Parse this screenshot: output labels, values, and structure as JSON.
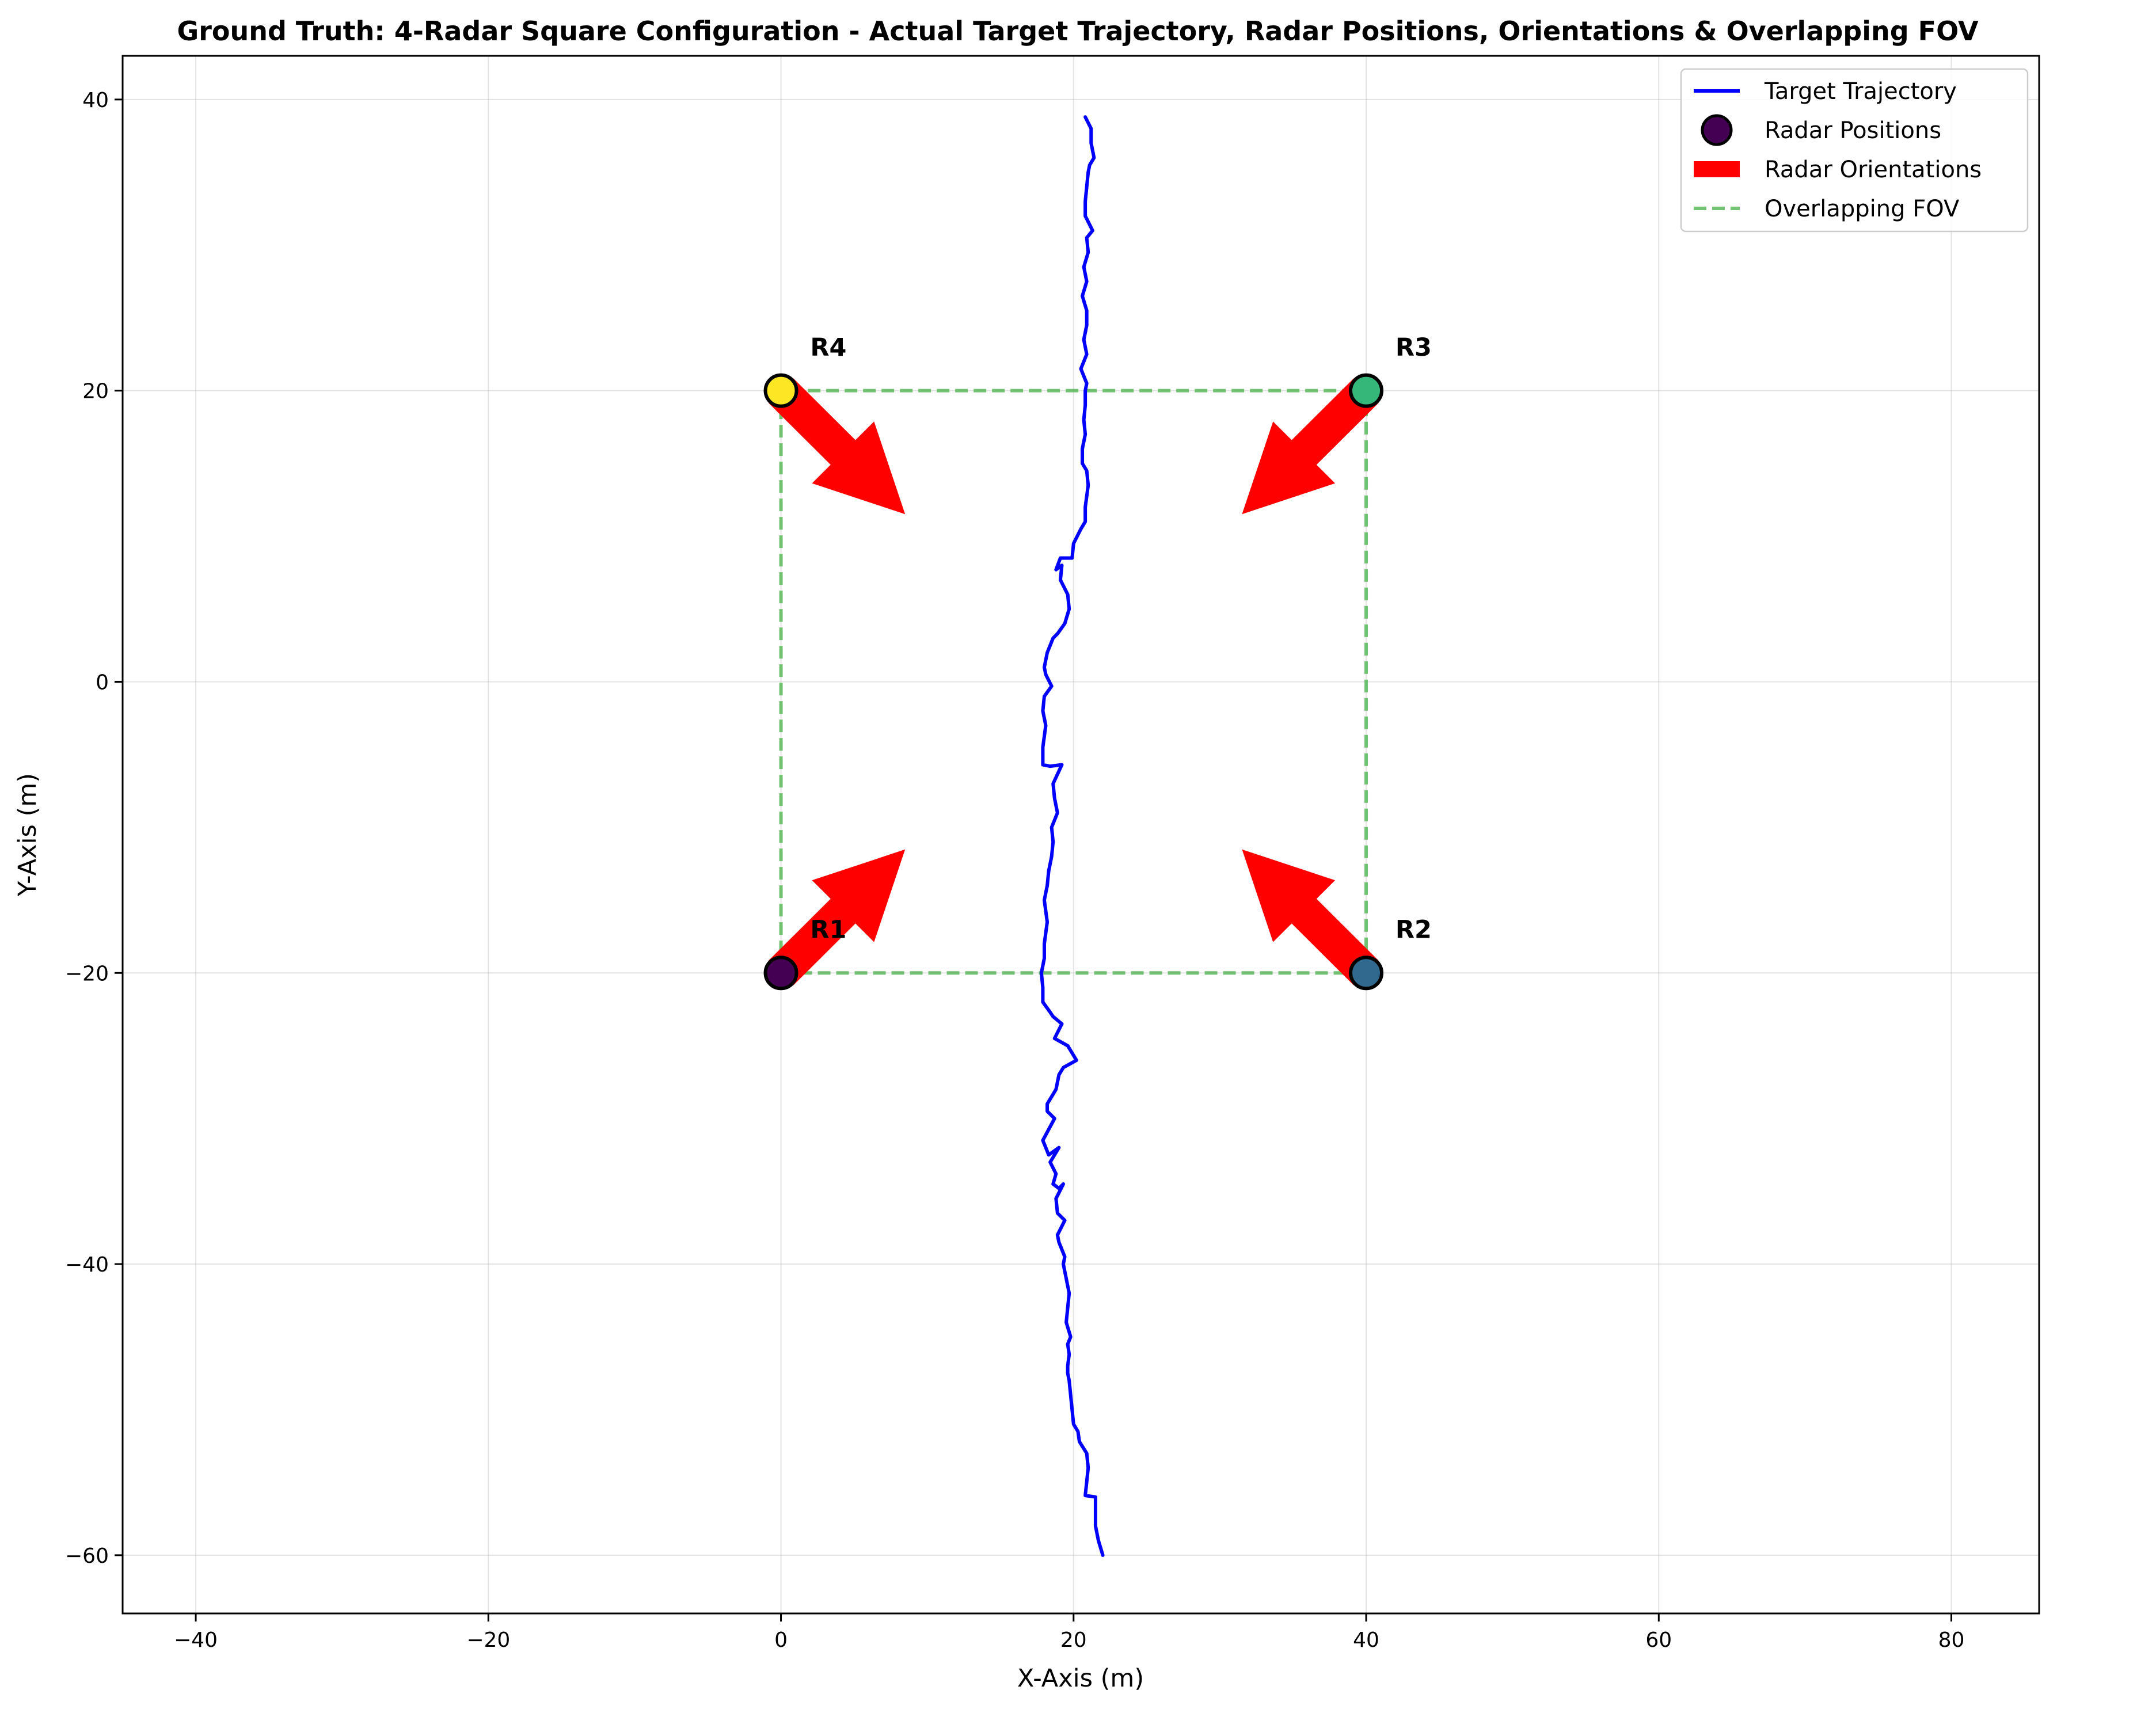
{
  "chart_data": {
    "type": "line",
    "title": "Ground Truth: 4-Radar Square Configuration - Actual Target Trajectory, Radar Positions, Orientations & Overlapping FOV",
    "xlabel": "X-Axis (m)",
    "ylabel": "Y-Axis (m)",
    "xlim": [
      -45,
      86
    ],
    "ylim": [
      -64,
      43
    ],
    "xticks": [
      -40,
      -20,
      0,
      20,
      40,
      60,
      80
    ],
    "yticks": [
      -60,
      -40,
      -20,
      0,
      20,
      40
    ],
    "xtick_labels": [
      "−40",
      "−20",
      "0",
      "20",
      "40",
      "60",
      "80"
    ],
    "ytick_labels": [
      "−60",
      "−40",
      "−20",
      "0",
      "20",
      "40"
    ],
    "grid": true,
    "legend_position": "top-right",
    "legend": [
      {
        "label": "Target Trajectory",
        "kind": "line",
        "color": "#0000ff"
      },
      {
        "label": "Radar Positions",
        "kind": "marker",
        "color": "#440154"
      },
      {
        "label": "Radar Orientations",
        "kind": "patch",
        "color": "#ff0000"
      },
      {
        "label": "Overlapping FOV",
        "kind": "dashed",
        "color": "#5cb85c"
      }
    ],
    "trajectory": {
      "name": "Target Trajectory",
      "color": "#0000ff",
      "x": [
        22.0,
        21.7,
        21.5,
        21.5,
        20.8,
        21.0,
        20.9,
        20.4,
        20.3,
        20.0,
        19.9,
        19.8,
        19.7,
        19.6,
        19.6,
        19.7,
        19.6,
        19.8,
        19.5,
        19.6,
        19.7,
        19.5,
        19.4,
        19.3,
        19.4,
        19.0,
        18.9,
        19.4,
        18.9,
        18.8,
        19.3,
        19.0,
        18.6,
        18.8,
        18.4,
        19.0,
        18.3,
        17.9,
        18.7,
        18.2,
        18.2,
        18.8,
        19.0,
        19.3,
        20.2,
        19.6,
        18.7,
        19.2,
        18.6,
        18.4,
        17.9,
        17.9,
        17.8,
        18.0,
        18.0,
        18.2,
        18.0,
        18.2,
        18.3,
        18.5,
        18.6,
        18.5,
        18.9,
        18.7,
        18.6,
        19.2,
        18.4,
        17.9,
        17.9,
        18.1,
        17.9,
        18.0,
        18.5,
        18.1,
        18.0,
        18.2,
        18.6,
        18.9,
        19.4,
        19.7,
        19.6,
        19.1,
        19.2,
        18.8,
        19.1,
        19.9,
        20.0,
        20.5,
        20.8,
        20.8,
        21.0,
        20.9,
        20.6,
        20.6,
        20.8,
        20.7,
        20.8,
        20.8,
        20.9,
        20.5,
        20.9,
        20.7,
        20.9,
        20.9,
        20.6,
        20.9,
        20.7,
        21.0,
        20.9,
        21.3,
        20.8,
        20.8,
        20.9,
        21.0,
        21.1,
        21.4,
        21.2,
        21.2,
        20.8
      ],
      "y": [
        -60.0,
        -59.0,
        -58.0,
        -56.0,
        -55.9,
        -54.0,
        -53.0,
        -52.2,
        -51.5,
        -51.0,
        -50.0,
        -49.0,
        -48.0,
        -47.5,
        -47.0,
        -46.2,
        -45.5,
        -45.0,
        -44.0,
        -43.0,
        -42.0,
        -41.0,
        -40.5,
        -40.0,
        -39.5,
        -38.5,
        -38.0,
        -37.0,
        -36.5,
        -35.5,
        -34.5,
        -34.8,
        -34.5,
        -33.8,
        -33.0,
        -32.0,
        -32.5,
        -31.5,
        -30.0,
        -29.5,
        -29.0,
        -28.0,
        -27.0,
        -26.5,
        -26.0,
        -25.0,
        -24.5,
        -23.5,
        -23.0,
        -22.7,
        -22.0,
        -21.0,
        -20.0,
        -19.0,
        -18.0,
        -16.5,
        -15.0,
        -14.0,
        -13.0,
        -12.0,
        -11.0,
        -10.0,
        -9.0,
        -8.0,
        -7.0,
        -5.7,
        -5.8,
        -5.7,
        -4.5,
        -3.0,
        -2.0,
        -1.0,
        -0.3,
        0.5,
        1.0,
        2.0,
        3.0,
        3.3,
        4.0,
        5.0,
        6.0,
        7.0,
        8.0,
        7.7,
        8.5,
        8.5,
        9.5,
        10.5,
        11.0,
        12.0,
        13.5,
        14.5,
        15.0,
        16.0,
        17.0,
        18.0,
        19.0,
        20.0,
        20.5,
        21.5,
        22.5,
        23.5,
        24.5,
        25.5,
        26.5,
        27.5,
        28.5,
        29.5,
        30.5,
        31.0,
        32.0,
        33.0,
        34.0,
        35.0,
        35.5,
        36.0,
        37.0,
        38.0,
        38.8
      ]
    },
    "radars": [
      {
        "label": "R1",
        "x": 0,
        "y": -20,
        "color": "#440154",
        "heading_deg": 45
      },
      {
        "label": "R2",
        "x": 40,
        "y": -20,
        "color": "#31688e",
        "heading_deg": 135
      },
      {
        "label": "R3",
        "x": 40,
        "y": 20,
        "color": "#35b779",
        "heading_deg": 225
      },
      {
        "label": "R4",
        "x": 0,
        "y": 20,
        "color": "#fde725",
        "heading_deg": 315
      }
    ],
    "fov": {
      "name": "Overlapping FOV",
      "x": [
        0,
        40,
        40,
        0,
        0
      ],
      "y": [
        -20,
        -20,
        20,
        20,
        -20
      ],
      "color": "#5cb85c"
    },
    "arrow_length_m": 12
  }
}
